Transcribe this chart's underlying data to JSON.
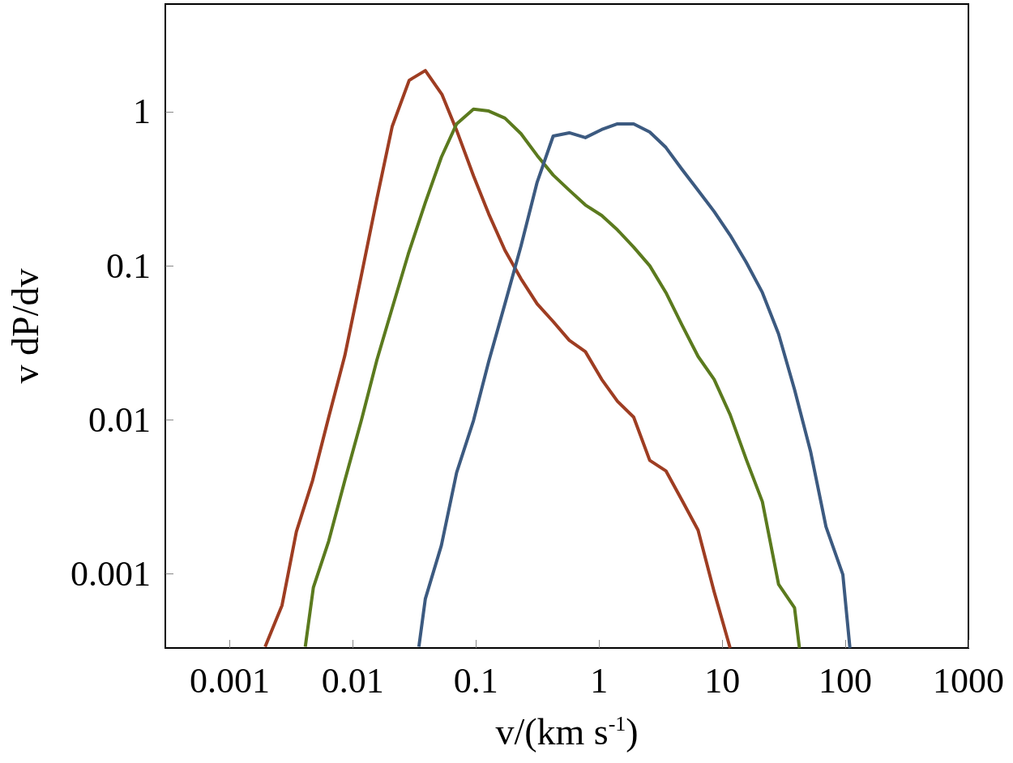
{
  "chart_data": {
    "type": "line",
    "xlabel": "v/(km s$^{-1}$)",
    "ylabel": "v dP/dv",
    "log": "xy",
    "grid": false,
    "marker": "none",
    "line_style": "solid",
    "xlim": [
      0.0003,
      1000
    ],
    "xticks": [
      0.001,
      0.01,
      0.1,
      1,
      10,
      100,
      1000
    ],
    "ylim": [
      0.00033,
      5
    ],
    "yticks": [
      0.001,
      0.01,
      0.1,
      1
    ],
    "series": [
      {
        "color": "#9e3d22",
        "x": [
          0.00194,
          0.00266,
          0.00348,
          0.00471,
          0.00637,
          0.00861,
          0.0118,
          0.0157,
          0.0209,
          0.0287,
          0.0388,
          0.0531,
          0.0697,
          0.0955,
          0.127,
          0.172,
          0.232,
          0.314,
          0.424,
          0.573,
          0.774,
          1.05,
          1.41,
          1.91,
          2.58,
          3.49,
          4.71,
          6.37,
          8.6,
          11.6
        ],
        "values": [
          0.000336,
          0.000624,
          0.00188,
          0.00403,
          0.0104,
          0.0261,
          0.0886,
          0.273,
          0.804,
          1.6,
          1.85,
          1.29,
          0.757,
          0.384,
          0.217,
          0.126,
          0.0824,
          0.0566,
          0.0434,
          0.0328,
          0.0277,
          0.0183,
          0.0132,
          0.0104,
          0.00545,
          0.00466,
          0.00301,
          0.00192,
          0.000766,
          0.00033
        ]
      },
      {
        "color": "#5b7a1e",
        "x": [
          0.00411,
          0.00478,
          0.00637,
          0.00861,
          0.0118,
          0.0157,
          0.0209,
          0.0282,
          0.0388,
          0.0524,
          0.0697,
          0.0955,
          0.127,
          0.172,
          0.232,
          0.314,
          0.424,
          0.573,
          0.774,
          1.05,
          1.41,
          1.91,
          2.58,
          3.49,
          4.71,
          6.37,
          8.6,
          11.6,
          15.7,
          21.2,
          28.7,
          38.7,
          42.4
        ],
        "values": [
          0.000336,
          0.000814,
          0.00163,
          0.00403,
          0.0101,
          0.0245,
          0.0532,
          0.119,
          0.257,
          0.507,
          0.834,
          1.04,
          1.01,
          0.908,
          0.721,
          0.52,
          0.388,
          0.309,
          0.248,
          0.212,
          0.171,
          0.132,
          0.1,
          0.067,
          0.0413,
          0.0258,
          0.0183,
          0.0108,
          0.00552,
          0.00294,
          0.000855,
          0.000601,
          0.00033
        ]
      },
      {
        "color": "#3c5a80",
        "x": [
          0.0344,
          0.0388,
          0.0524,
          0.0697,
          0.0955,
          0.127,
          0.172,
          0.232,
          0.314,
          0.424,
          0.573,
          0.774,
          1.05,
          1.41,
          1.91,
          2.58,
          3.49,
          4.71,
          6.37,
          8.6,
          11.6,
          15.7,
          21.2,
          28.7,
          38.7,
          52.4,
          69.7,
          95.5,
          109
        ],
        "values": [
          0.000336,
          0.000687,
          0.00153,
          0.00455,
          0.00988,
          0.0239,
          0.0566,
          0.134,
          0.348,
          0.695,
          0.73,
          0.679,
          0.766,
          0.834,
          0.834,
          0.738,
          0.586,
          0.423,
          0.309,
          0.225,
          0.158,
          0.105,
          0.067,
          0.0361,
          0.0157,
          0.00616,
          0.00202,
          0.000988,
          0.00033
        ]
      }
    ]
  }
}
